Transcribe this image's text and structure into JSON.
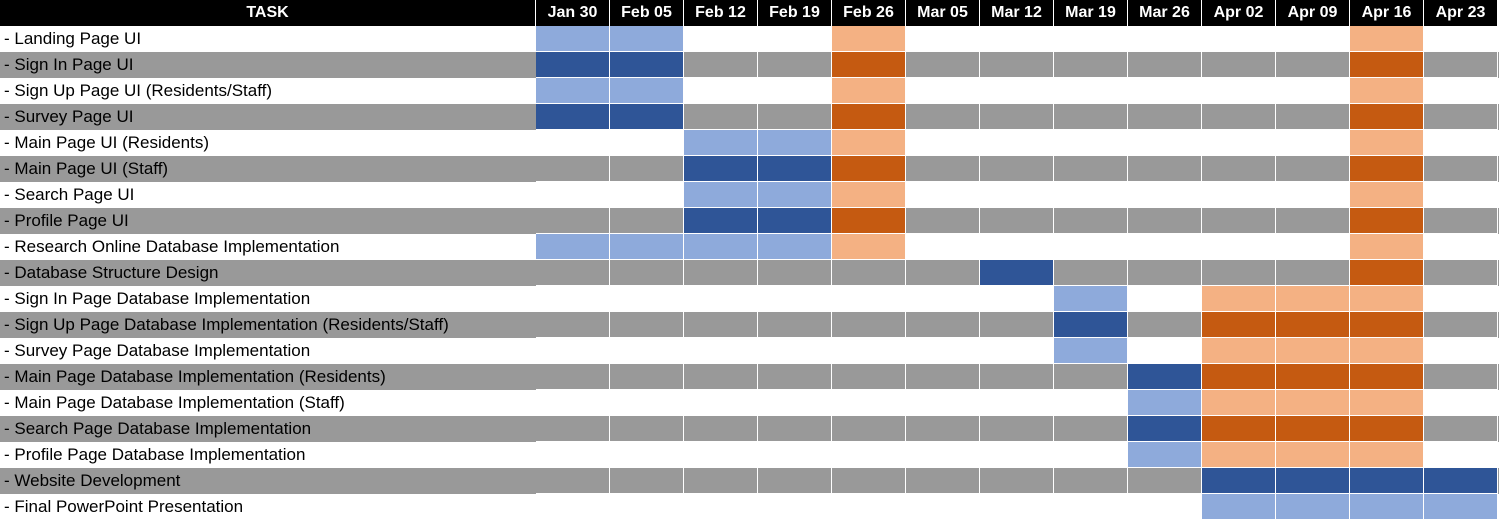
{
  "chart_data": {
    "type": "table",
    "task_header": "TASK",
    "weeks": [
      "Jan 30",
      "Feb 05",
      "Feb 12",
      "Feb 19",
      "Feb 26",
      "Mar 05",
      "Mar 12",
      "Mar 19",
      "Mar 26",
      "Apr 02",
      "Apr 09",
      "Apr 16",
      "Apr 23"
    ],
    "tasks": [
      {
        "name": "- Landing Page UI",
        "cells": [
          "work",
          "work",
          null,
          null,
          "review",
          null,
          null,
          null,
          null,
          null,
          null,
          "review",
          null
        ]
      },
      {
        "name": "- Sign In Page UI",
        "cells": [
          "work",
          "work",
          null,
          null,
          "review",
          null,
          null,
          null,
          null,
          null,
          null,
          "review",
          null
        ]
      },
      {
        "name": "- Sign Up Page UI (Residents/Staff)",
        "cells": [
          "work",
          "work",
          null,
          null,
          "review",
          null,
          null,
          null,
          null,
          null,
          null,
          "review",
          null
        ]
      },
      {
        "name": "- Survey Page UI",
        "cells": [
          "work",
          "work",
          null,
          null,
          "review",
          null,
          null,
          null,
          null,
          null,
          null,
          "review",
          null
        ]
      },
      {
        "name": "- Main Page UI (Residents)",
        "cells": [
          null,
          null,
          "work",
          "work",
          "review",
          null,
          null,
          null,
          null,
          null,
          null,
          "review",
          null
        ]
      },
      {
        "name": "- Main Page UI (Staff)",
        "cells": [
          null,
          null,
          "work",
          "work",
          "review",
          null,
          null,
          null,
          null,
          null,
          null,
          "review",
          null
        ]
      },
      {
        "name": "- Search Page UI",
        "cells": [
          null,
          null,
          "work",
          "work",
          "review",
          null,
          null,
          null,
          null,
          null,
          null,
          "review",
          null
        ]
      },
      {
        "name": "- Profile Page UI",
        "cells": [
          null,
          null,
          "work",
          "work",
          "review",
          null,
          null,
          null,
          null,
          null,
          null,
          "review",
          null
        ]
      },
      {
        "name": "- Research Online Database Implementation",
        "cells": [
          "work",
          "work",
          "work",
          "work",
          "review",
          null,
          null,
          null,
          null,
          null,
          null,
          "review",
          null
        ]
      },
      {
        "name": "- Database Structure Design",
        "cells": [
          null,
          null,
          null,
          null,
          null,
          null,
          "work",
          null,
          null,
          null,
          null,
          "review",
          null
        ]
      },
      {
        "name": "- Sign In Page Database Implementation",
        "cells": [
          null,
          null,
          null,
          null,
          null,
          null,
          null,
          "work",
          null,
          "review",
          "review",
          "review",
          null
        ]
      },
      {
        "name": "- Sign Up Page Database Implementation (Residents/Staff)",
        "cells": [
          null,
          null,
          null,
          null,
          null,
          null,
          null,
          "work",
          null,
          "review",
          "review",
          "review",
          null
        ]
      },
      {
        "name": "- Survey Page Database Implementation",
        "cells": [
          null,
          null,
          null,
          null,
          null,
          null,
          null,
          "work",
          null,
          "review",
          "review",
          "review",
          null
        ]
      },
      {
        "name": "- Main Page Database Implementation (Residents)",
        "cells": [
          null,
          null,
          null,
          null,
          null,
          null,
          null,
          null,
          "work",
          "review",
          "review",
          "review",
          null
        ]
      },
      {
        "name": "- Main Page Database Implementation (Staff)",
        "cells": [
          null,
          null,
          null,
          null,
          null,
          null,
          null,
          null,
          "work",
          "review",
          "review",
          "review",
          null
        ]
      },
      {
        "name": "- Search Page Database Implementation",
        "cells": [
          null,
          null,
          null,
          null,
          null,
          null,
          null,
          null,
          "work",
          "review",
          "review",
          "review",
          null
        ]
      },
      {
        "name": "- Profile Page Database Implementation",
        "cells": [
          null,
          null,
          null,
          null,
          null,
          null,
          null,
          null,
          "work",
          "review",
          "review",
          "review",
          null
        ]
      },
      {
        "name": "- Website Development",
        "cells": [
          null,
          null,
          null,
          null,
          null,
          null,
          null,
          null,
          null,
          "work",
          "work",
          "work",
          "work"
        ]
      },
      {
        "name": "- Final PowerPoint Presentation",
        "cells": [
          null,
          null,
          null,
          null,
          null,
          null,
          null,
          null,
          null,
          "work",
          "work",
          "work",
          "work"
        ]
      }
    ],
    "colors": {
      "header_bg": "#000000",
      "header_text": "#ffffff",
      "row_white": "#ffffff",
      "row_gray": "#999999",
      "work_on_white": "#8eaadb",
      "work_on_gray": "#2f5597",
      "review_on_white": "#f4b183",
      "review_on_gray": "#c55a11"
    }
  }
}
